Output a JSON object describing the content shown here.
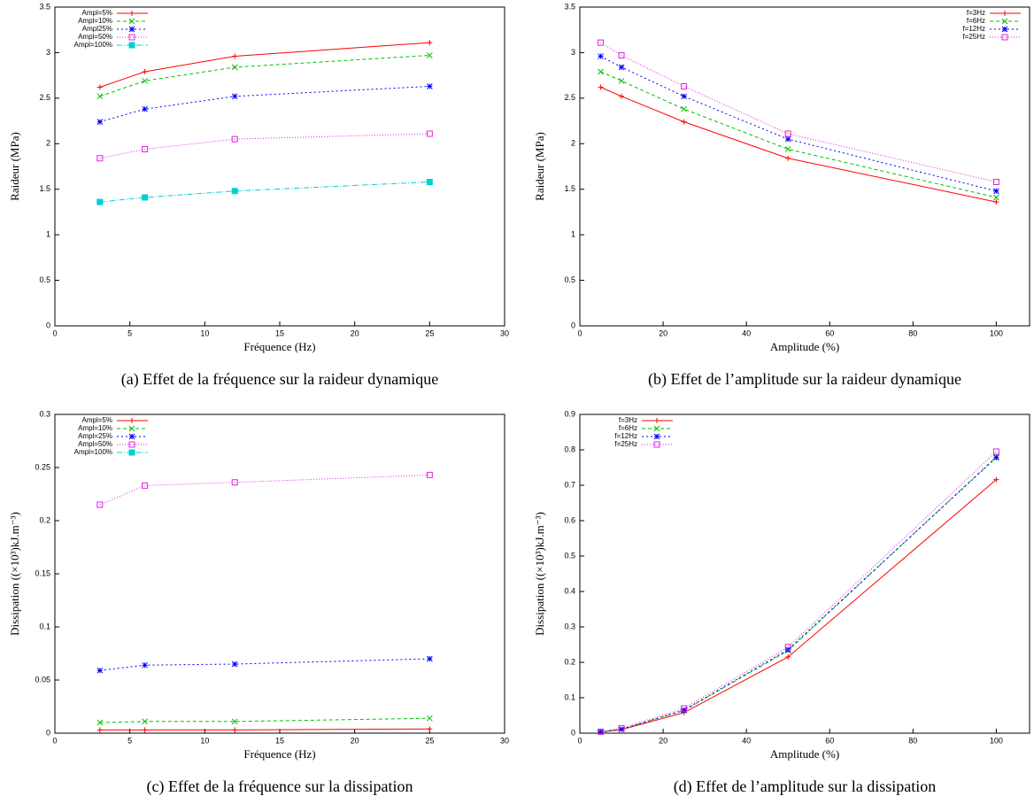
{
  "chart_data": [
    {
      "type": "line",
      "caption": "(a) Effet de la fréquence sur la raideur dynamique",
      "xlabel": "Fréquence (Hz)",
      "ylabel": "Raideur (MPa)",
      "x": [
        3,
        6,
        12,
        25
      ],
      "xlim": [
        0,
        30
      ],
      "xticks": [
        0,
        5,
        10,
        15,
        20,
        25,
        30
      ],
      "ylim": [
        0,
        3.5
      ],
      "yticks": [
        0,
        0.5,
        1,
        1.5,
        2,
        2.5,
        3,
        3.5
      ],
      "legend": "top-left",
      "series": [
        {
          "name": "Ampl=5%",
          "color": "#ff0000",
          "values": [
            2.62,
            2.79,
            2.96,
            3.11
          ]
        },
        {
          "name": "Ampl=10%",
          "color": "#00c000",
          "values": [
            2.52,
            2.69,
            2.84,
            2.97
          ]
        },
        {
          "name": "Ampl25%",
          "color": "#0000ff",
          "values": [
            2.24,
            2.38,
            2.52,
            2.63
          ]
        },
        {
          "name": "Ampl=50%",
          "color": "#e020e0",
          "values": [
            1.84,
            1.94,
            2.05,
            2.11
          ]
        },
        {
          "name": "Ampl=100%",
          "color": "#00d0d0",
          "values": [
            1.36,
            1.41,
            1.48,
            1.58
          ]
        }
      ]
    },
    {
      "type": "line",
      "caption": "(b) Effet de l’amplitude sur la raideur dynamique",
      "xlabel": "Amplitude (%)",
      "ylabel": "Raideur (MPa)",
      "x": [
        5,
        10,
        25,
        50,
        100
      ],
      "xlim": [
        0,
        108
      ],
      "xticks": [
        0,
        20,
        40,
        60,
        80,
        100
      ],
      "ylim": [
        0,
        3.5
      ],
      "yticks": [
        0,
        0.5,
        1,
        1.5,
        2,
        2.5,
        3,
        3.5
      ],
      "legend": "top-right",
      "series": [
        {
          "name": "f=3Hz",
          "color": "#ff0000",
          "values": [
            2.62,
            2.52,
            2.24,
            1.84,
            1.36
          ]
        },
        {
          "name": "f=6Hz",
          "color": "#00c000",
          "values": [
            2.79,
            2.69,
            2.38,
            1.94,
            1.41
          ]
        },
        {
          "name": "f=12Hz",
          "color": "#0000ff",
          "values": [
            2.96,
            2.84,
            2.52,
            2.05,
            1.48
          ]
        },
        {
          "name": "f=25Hz",
          "color": "#e020e0",
          "values": [
            3.11,
            2.97,
            2.63,
            2.11,
            1.58
          ]
        }
      ]
    },
    {
      "type": "line",
      "caption": "(c) Effet de la fréquence sur la dissipation",
      "xlabel": "Fréquence (Hz)",
      "ylabel": "Dissipation ((×10³)kJ.m⁻³)",
      "x": [
        3,
        6,
        12,
        25
      ],
      "xlim": [
        0,
        30
      ],
      "xticks": [
        0,
        5,
        10,
        15,
        20,
        25,
        30
      ],
      "ylim": [
        0,
        0.3
      ],
      "yticks": [
        0,
        0.05,
        0.1,
        0.15,
        0.2,
        0.25,
        0.3
      ],
      "legend": "top-left",
      "series": [
        {
          "name": "Ampl=5%",
          "color": "#ff0000",
          "values": [
            0.003,
            0.003,
            0.003,
            0.004
          ]
        },
        {
          "name": "Ampl=10%",
          "color": "#00c000",
          "values": [
            0.01,
            0.011,
            0.011,
            0.014
          ]
        },
        {
          "name": "Ampl=25%",
          "color": "#0000ff",
          "values": [
            0.059,
            0.064,
            0.065,
            0.07
          ]
        },
        {
          "name": "Ampl=50%",
          "color": "#e020e0",
          "values": [
            0.215,
            0.233,
            0.236,
            0.243
          ]
        },
        {
          "name": "Ampl=100%",
          "color": "#00d0d0",
          "values": [
            null,
            null,
            null,
            null
          ]
        }
      ]
    },
    {
      "type": "line",
      "caption": "(d) Effet de l’amplitude sur la dissipation",
      "xlabel": "Amplitude (%)",
      "ylabel": "Dissipation ((×10³)kJ.m⁻³)",
      "x": [
        5,
        10,
        25,
        50,
        100
      ],
      "xlim": [
        0,
        108
      ],
      "xticks": [
        0,
        20,
        40,
        60,
        80,
        100
      ],
      "ylim": [
        0,
        0.9
      ],
      "yticks": [
        0,
        0.1,
        0.2,
        0.3,
        0.4,
        0.5,
        0.6,
        0.7,
        0.8,
        0.9
      ],
      "legend": "top-left",
      "series": [
        {
          "name": "f=3Hz",
          "color": "#ff0000",
          "values": [
            0.003,
            0.01,
            0.058,
            0.215,
            0.716
          ]
        },
        {
          "name": "f=6Hz",
          "color": "#00c000",
          "values": [
            0.003,
            0.011,
            0.064,
            0.233,
            0.78
          ]
        },
        {
          "name": "f=12Hz",
          "color": "#0000ff",
          "values": [
            0.004,
            0.011,
            0.065,
            0.236,
            0.778
          ]
        },
        {
          "name": "f=25Hz",
          "color": "#e020e0",
          "values": [
            0.004,
            0.014,
            0.07,
            0.243,
            0.795
          ]
        }
      ]
    }
  ]
}
